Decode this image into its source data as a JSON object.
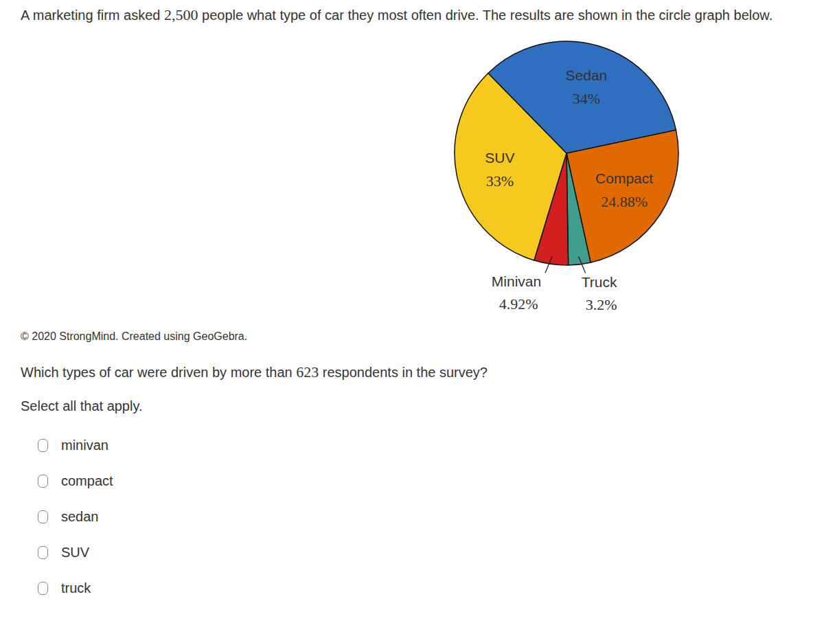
{
  "intro": {
    "before": "A marketing firm asked ",
    "number": "2,500",
    "after": " people what type of car they most often drive. The results are shown in the circle graph below."
  },
  "chart_data": {
    "type": "pie",
    "categories": [
      "Compact",
      "Truck",
      "Minivan",
      "SUV",
      "Sedan"
    ],
    "values": [
      24.88,
      3.2,
      4.92,
      33,
      34
    ],
    "value_labels": [
      "24.88%",
      "3.2%",
      "4.92%",
      "33%",
      "34%"
    ],
    "colors": [
      "#e06a00",
      "#3f9e8c",
      "#d21f1f",
      "#f6c91f",
      "#2f6fbf"
    ],
    "data_labels": true
  },
  "credit": "© 2020 StrongMind. Created using GeoGebra.",
  "question": {
    "before": "Which types of car were driven by more than ",
    "number": "623",
    "after": " respondents in the survey?"
  },
  "instruction": "Select all that apply.",
  "options": [
    "minivan",
    "compact",
    "sedan",
    "SUV",
    "truck"
  ]
}
